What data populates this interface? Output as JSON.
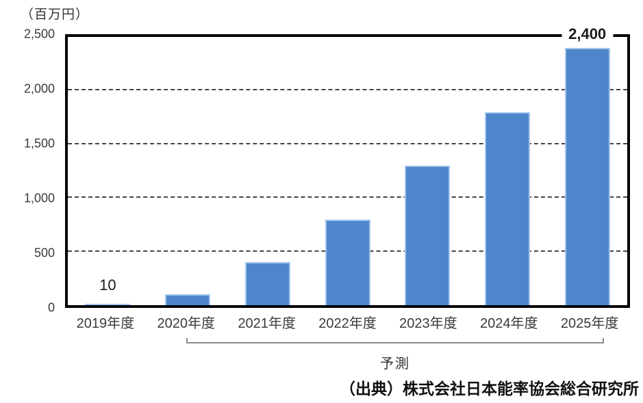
{
  "chart_data": {
    "type": "bar",
    "title": "",
    "unit_label": "（百万円）",
    "categories": [
      "2019年度",
      "2020年度",
      "2021年度",
      "2022年度",
      "2023年度",
      "2024年度",
      "2025年度"
    ],
    "values": [
      10,
      100,
      400,
      800,
      1300,
      1800,
      2400
    ],
    "bar_value_labels": [
      "10",
      "",
      "",
      "",
      "",
      "",
      "2,400"
    ],
    "ylim": [
      0,
      2500
    ],
    "yticks": [
      0,
      500,
      1000,
      1500,
      2000,
      2500
    ],
    "ytick_labels": [
      "0",
      "500",
      "1,000",
      "1,500",
      "2,000",
      "2,500"
    ],
    "xlabel": "",
    "ylabel": "（百万円）",
    "grid": "horizontal-dashed",
    "legend": "none",
    "forecast_bracket": {
      "label": "予測",
      "from": "2020年度",
      "to": "2025年度"
    },
    "source": "（出典）株式会社日本能率協会総合研究所",
    "colors": {
      "bar_fill": "#4e85cb",
      "bar_edge": "#a6c6ec",
      "axis": "#000000",
      "grid": "#444444",
      "bracket": "#8c8c8c",
      "text": "#333333",
      "background": "#ffffff"
    }
  }
}
